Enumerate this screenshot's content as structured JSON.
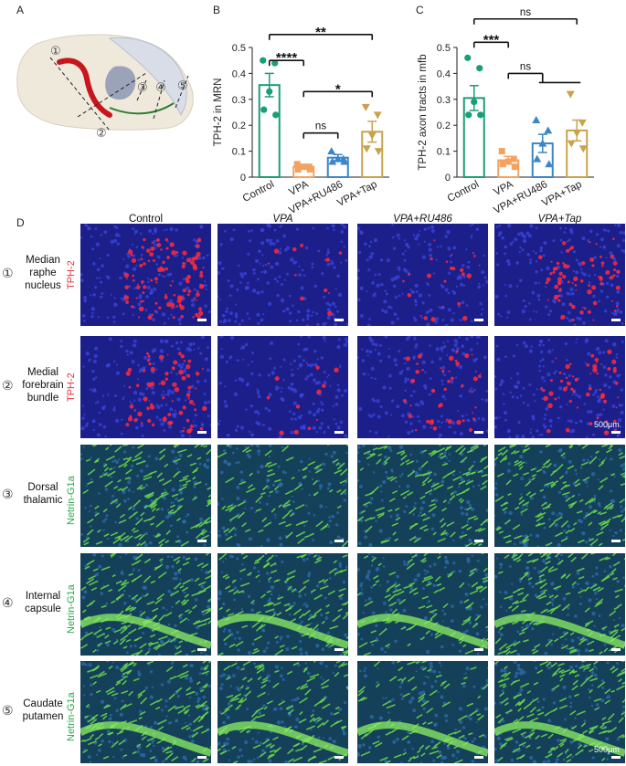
{
  "panels": {
    "a": {
      "letter": "A",
      "region_numbers": [
        "①",
        "②",
        "③",
        "④",
        "⑤"
      ]
    },
    "b": {
      "letter": "B"
    },
    "c": {
      "letter": "C"
    },
    "d": {
      "letter": "D"
    }
  },
  "chart_data": [
    {
      "type": "bar",
      "title": "",
      "xlabel": "",
      "ylabel": "TPH-2 in MRN",
      "ylim": [
        0,
        0.5
      ],
      "yticks": [
        "0",
        "0.1",
        "0.2",
        "0.3",
        "0.4",
        "0.5"
      ],
      "categories": [
        "Control",
        "VPA",
        "VPA+RU486",
        "VPA+Tap"
      ],
      "values": [
        0.355,
        0.04,
        0.075,
        0.175
      ],
      "errors": [
        0.045,
        0.008,
        0.012,
        0.04
      ],
      "points": [
        [
          0.45,
          0.44,
          0.33,
          0.26,
          0.24
        ],
        [
          0.05,
          0.04,
          0.04,
          0.03,
          0.03
        ],
        [
          0.1,
          0.07,
          0.07,
          0.06,
          0.06
        ],
        [
          0.27,
          0.24,
          0.16,
          0.11,
          0.1
        ]
      ],
      "colors": [
        "#1a9e77",
        "#f4a261",
        "#3a86c8",
        "#c9a24d"
      ],
      "markers": [
        "circle",
        "square",
        "triangle-up",
        "triangle-down"
      ],
      "significance": [
        {
          "from": 0,
          "to": 1,
          "label": "****",
          "level": 0.45
        },
        {
          "from": 0,
          "to": 3,
          "label": "**",
          "level": 0.55
        },
        {
          "from": 1,
          "to": 3,
          "label": "*",
          "level": 0.33
        },
        {
          "from": 1,
          "to": 2,
          "label": "ns",
          "level": 0.17
        }
      ]
    },
    {
      "type": "bar",
      "title": "",
      "xlabel": "",
      "ylabel": "TPH-2 axon tracts in mfb",
      "ylim": [
        0,
        0.5
      ],
      "yticks": [
        "0",
        "0.1",
        "0.2",
        "0.3",
        "0.4",
        "0.5"
      ],
      "categories": [
        "Control",
        "VPA",
        "VPA+RU486",
        "VPA+Tap"
      ],
      "values": [
        0.305,
        0.065,
        0.13,
        0.18
      ],
      "errors": [
        0.048,
        0.015,
        0.035,
        0.04
      ],
      "points": [
        [
          0.46,
          0.42,
          0.29,
          0.24,
          0.24
        ],
        [
          0.1,
          0.07,
          0.06,
          0.05,
          0.04
        ],
        [
          0.22,
          0.18,
          0.13,
          0.07,
          0.05
        ],
        [
          0.32,
          0.21,
          0.17,
          0.13,
          0.11
        ]
      ],
      "colors": [
        "#1a9e77",
        "#f4a261",
        "#3a86c8",
        "#c9a24d"
      ],
      "markers": [
        "circle",
        "square",
        "triangle-up",
        "triangle-down"
      ],
      "significance": [
        {
          "from": 0,
          "to": 1,
          "label": "***",
          "level": 0.52
        },
        {
          "from": 0,
          "to": 3,
          "label": "ns",
          "level": 0.61
        },
        {
          "from": 1,
          "to": 2,
          "label": "ns",
          "level": 0.4,
          "group_to": [
            2,
            3
          ]
        }
      ]
    }
  ],
  "micrographs": {
    "columns": [
      "Control",
      "VPA",
      "VPA+RU486",
      "VPA+Tap"
    ],
    "rows": [
      {
        "number": "①",
        "label_lines": [
          "Median",
          "raphe",
          "nucleus"
        ],
        "stain": "TPH-2",
        "stain_color": "#e8303a",
        "kind": "red"
      },
      {
        "number": "②",
        "label_lines": [
          "Medial",
          "forebrain",
          "bundle"
        ],
        "stain": "TPH-2",
        "stain_color": "#e8303a",
        "kind": "red"
      },
      {
        "number": "③",
        "label_lines": [
          "Dorsal",
          "thalamic"
        ],
        "stain": "Netrin-G1a",
        "stain_color": "#2aa84a",
        "kind": "green"
      },
      {
        "number": "④",
        "label_lines": [
          "Internal",
          "capsule"
        ],
        "stain": "Netrin-G1a",
        "stain_color": "#2aa84a",
        "kind": "green"
      },
      {
        "number": "⑤",
        "label_lines": [
          "Caudate",
          "putamen"
        ],
        "stain": "Netrin-G1a",
        "stain_color": "#2aa84a",
        "kind": "green"
      }
    ],
    "intensity": [
      [
        0.9,
        0.1,
        0.2,
        0.6
      ],
      [
        0.6,
        0.1,
        0.35,
        0.45
      ],
      [
        0.9,
        0.5,
        0.8,
        0.85
      ],
      [
        0.9,
        0.7,
        0.6,
        0.85
      ],
      [
        0.8,
        0.75,
        0.5,
        0.9
      ]
    ],
    "scale_labels": [
      {
        "row": 1,
        "text": "500μm"
      },
      {
        "row": 4,
        "text": "500μm"
      }
    ]
  }
}
